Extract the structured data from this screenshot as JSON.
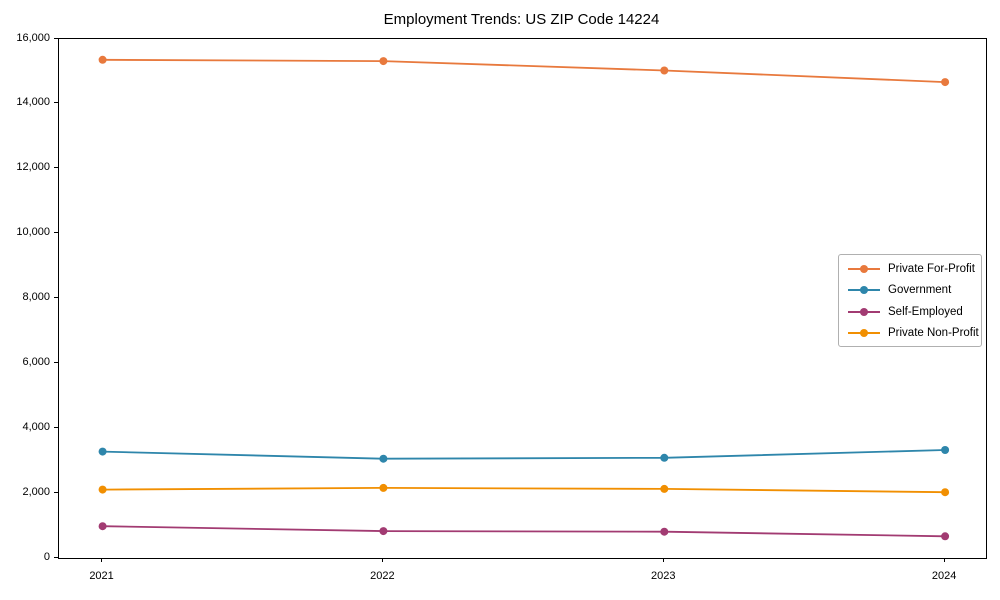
{
  "page": {
    "background": "#ffffff"
  },
  "chart_data": {
    "type": "line",
    "title": "Employment Trends: US ZIP Code 14224",
    "categories": [
      "2021",
      "2022",
      "2023",
      "2024"
    ],
    "series": [
      {
        "name": "Private For-Profit",
        "color": "#E8793D",
        "values": [
          15360,
          15320,
          15030,
          14670
        ]
      },
      {
        "name": "Government",
        "color": "#2E86AB",
        "values": [
          3280,
          3060,
          3090,
          3330
        ]
      },
      {
        "name": "Self-Employed",
        "color": "#A23B72",
        "values": [
          980,
          830,
          810,
          670
        ]
      },
      {
        "name": "Private Non-Profit",
        "color": "#F18F01",
        "values": [
          2110,
          2160,
          2130,
          2030
        ]
      }
    ],
    "xlabel": "",
    "ylabel": "",
    "ylim": [
      0,
      16000
    ],
    "y_ticks": [
      0,
      2000,
      4000,
      6000,
      8000,
      10000,
      12000,
      14000,
      16000
    ],
    "y_tick_labels": [
      "0",
      "2,000",
      "4,000",
      "6,000",
      "8,000",
      "10,000",
      "12,000",
      "14,000",
      "16,000"
    ],
    "grid": false,
    "legend_position": "center-right",
    "axis_color": "#000000",
    "legend_border_color": "#b0b0b0"
  }
}
